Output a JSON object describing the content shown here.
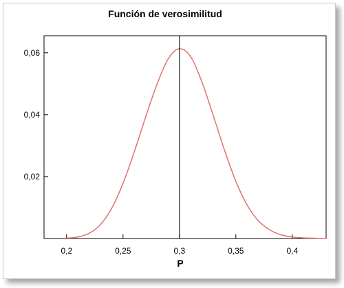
{
  "chart_data": {
    "type": "line",
    "title": "Función de verosimilitud",
    "xlabel": "P",
    "ylabel": "",
    "xlim": [
      0.18,
      0.43
    ],
    "ylim": [
      0,
      0.0655
    ],
    "x_ticks": [
      {
        "value": 0.2,
        "label": "0,2"
      },
      {
        "value": 0.25,
        "label": "0,25"
      },
      {
        "value": 0.3,
        "label": "0,3"
      },
      {
        "value": 0.35,
        "label": "0,35"
      },
      {
        "value": 0.4,
        "label": "0,4"
      }
    ],
    "y_ticks": [
      {
        "value": 0.02,
        "label": "0,02"
      },
      {
        "value": 0.04,
        "label": "0,04"
      },
      {
        "value": 0.06,
        "label": "0,06"
      }
    ],
    "grid": false,
    "legend": "none",
    "vline_x": 0.3,
    "series": [
      {
        "color": "#e0706e",
        "x": [
          0.2,
          0.21,
          0.22,
          0.23,
          0.24,
          0.25,
          0.26,
          0.27,
          0.28,
          0.29,
          0.3,
          0.31,
          0.32,
          0.33,
          0.34,
          0.35,
          0.36,
          0.37,
          0.38,
          0.39,
          0.4,
          0.41,
          0.42,
          0.43
        ],
        "y": [
          0.0001,
          0.0005,
          0.0017,
          0.0045,
          0.0098,
          0.0178,
          0.028,
          0.0392,
          0.0497,
          0.058,
          0.0613,
          0.0587,
          0.0505,
          0.0397,
          0.0285,
          0.0185,
          0.0108,
          0.0057,
          0.0028,
          0.0012,
          0.0005,
          0.0002,
          0.0001,
          0.0
        ]
      }
    ]
  }
}
